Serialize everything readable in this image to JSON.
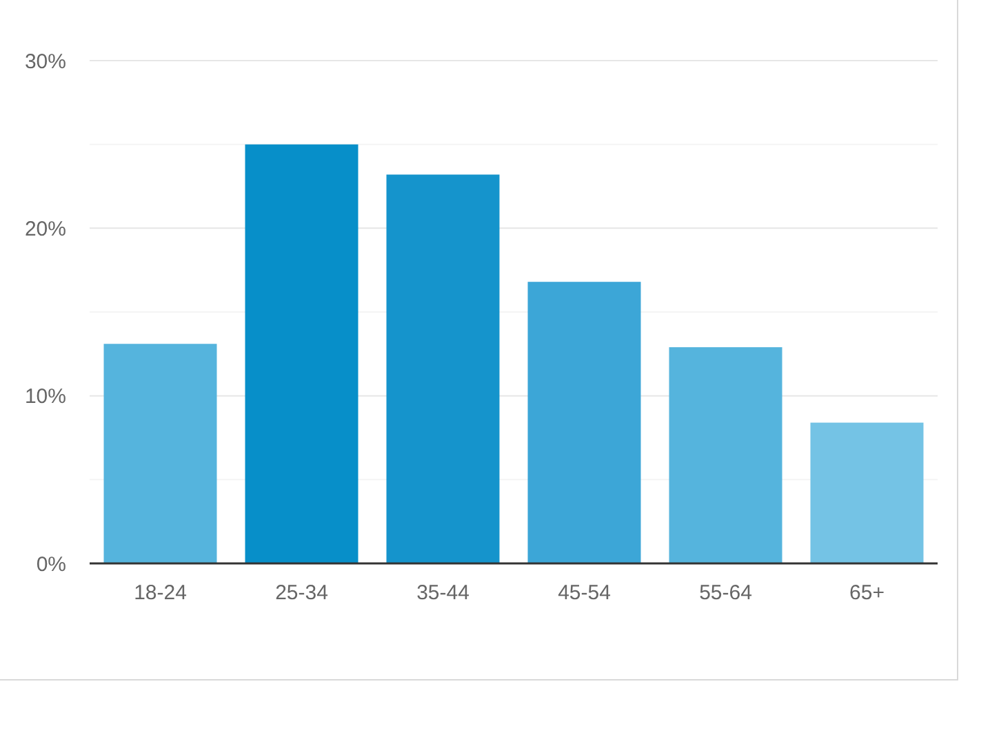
{
  "chart_data": {
    "type": "bar",
    "categories": [
      "18-24",
      "25-34",
      "35-44",
      "45-54",
      "55-64",
      "65+"
    ],
    "values": [
      13.1,
      25,
      23.2,
      16.8,
      12.9,
      8.4
    ],
    "colors": [
      "#55b4dd",
      "#078fc9",
      "#1594cc",
      "#3ca6d7",
      "#55b4dd",
      "#74c3e5"
    ],
    "ylim": [
      0,
      30
    ],
    "yticks": [
      {
        "value": 0,
        "label": "0%"
      },
      {
        "value": 5,
        "label": null
      },
      {
        "value": 10,
        "label": "10%"
      },
      {
        "value": 15,
        "label": null
      },
      {
        "value": 20,
        "label": "20%"
      },
      {
        "value": 25,
        "label": null
      },
      {
        "value": 30,
        "label": "30%"
      }
    ],
    "grid": "y"
  }
}
